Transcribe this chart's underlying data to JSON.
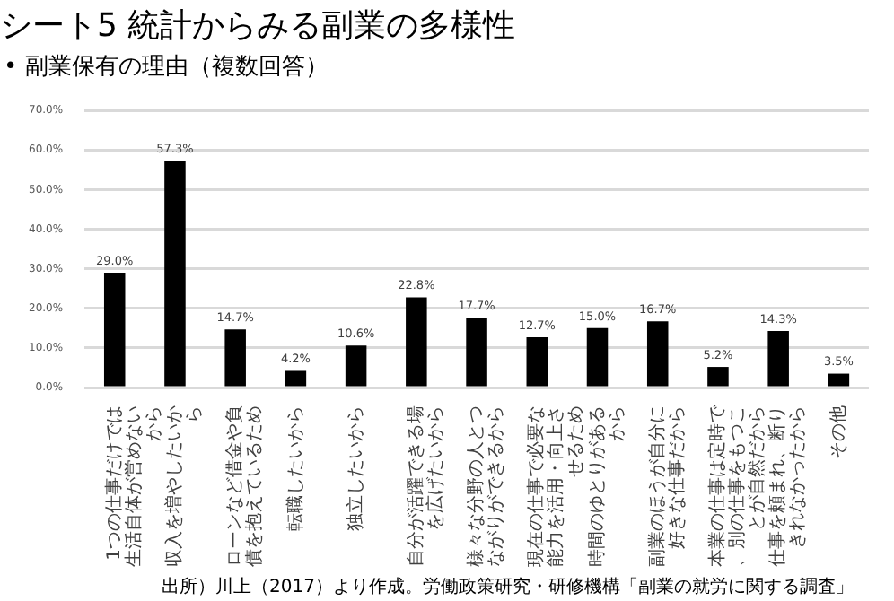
{
  "chart_data": {
    "type": "bar",
    "title": "シート5 統計からみる副業の多様性",
    "subtitle": "• 副業保有の理由（複数回答）",
    "categories": [
      "1つの仕事だけでは生活自体が営めないから",
      "収入を増やしたいから",
      "ローンなど借金や負債を抱えているため",
      "転職したいから",
      "独立したいから",
      "自分が活躍できる場を広げたいから",
      "様々な分野の人とつながりができるから",
      "現在の仕事で必要な能力を活用・向上させるため",
      "時間のゆとりがあるから",
      "副業のほうが自分に好きな仕事だから",
      "本業の仕事は定時で、別の仕事をもつことが自然だから",
      "仕事を頼まれ、断りきれなかったから",
      "その他"
    ],
    "values": [
      29.0,
      57.3,
      14.7,
      4.2,
      10.6,
      22.8,
      17.7,
      12.7,
      15.0,
      16.7,
      5.2,
      14.3,
      3.5
    ],
    "value_labels": [
      "29.0%",
      "57.3%",
      "14.7%",
      "4.2%",
      "10.6%",
      "22.8%",
      "17.7%",
      "12.7%",
      "15.0%",
      "16.7%",
      "5.2%",
      "14.3%",
      "3.5%"
    ],
    "color": "#000000",
    "ylim": [
      0,
      70
    ],
    "yticks": [
      {
        "value": 0,
        "label": "0.0%"
      },
      {
        "value": 10,
        "label": "10.0%"
      },
      {
        "value": 20,
        "label": "20.0%"
      },
      {
        "value": 30,
        "label": "30.0%"
      },
      {
        "value": 40,
        "label": "40.0%"
      },
      {
        "value": 50,
        "label": "50.0%"
      },
      {
        "value": 60,
        "label": "60.0%"
      },
      {
        "value": 70,
        "label": "70.0%"
      }
    ],
    "grid": "y",
    "legend": false,
    "annotations": [
      "出所）川上（2017）より作成。労働政策研究・研修機構「副業の就労に関する調査」"
    ]
  }
}
